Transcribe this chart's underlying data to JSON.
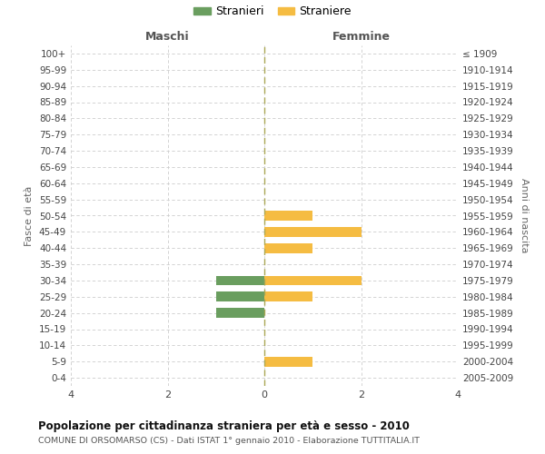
{
  "age_groups": [
    "100+",
    "95-99",
    "90-94",
    "85-89",
    "80-84",
    "75-79",
    "70-74",
    "65-69",
    "60-64",
    "55-59",
    "50-54",
    "45-49",
    "40-44",
    "35-39",
    "30-34",
    "25-29",
    "20-24",
    "15-19",
    "10-14",
    "5-9",
    "0-4"
  ],
  "birth_years": [
    "≤ 1909",
    "1910-1914",
    "1915-1919",
    "1920-1924",
    "1925-1929",
    "1930-1934",
    "1935-1939",
    "1940-1944",
    "1945-1949",
    "1950-1954",
    "1955-1959",
    "1960-1964",
    "1965-1969",
    "1970-1974",
    "1975-1979",
    "1980-1984",
    "1985-1989",
    "1990-1994",
    "1995-1999",
    "2000-2004",
    "2005-2009"
  ],
  "males": [
    0,
    0,
    0,
    0,
    0,
    0,
    0,
    0,
    0,
    0,
    0,
    0,
    0,
    0,
    1,
    1,
    1,
    0,
    0,
    0,
    0
  ],
  "females": [
    0,
    0,
    0,
    0,
    0,
    0,
    0,
    0,
    0,
    0,
    1,
    2,
    1,
    0,
    2,
    1,
    0,
    0,
    0,
    1,
    0
  ],
  "male_color": "#6a9e5f",
  "female_color": "#f5bc42",
  "title": "Popolazione per cittadinanza straniera per età e sesso - 2010",
  "subtitle": "COMUNE DI ORSOMARSO (CS) - Dati ISTAT 1° gennaio 2010 - Elaborazione TUTTITALIA.IT",
  "xlabel_left": "Maschi",
  "xlabel_right": "Femmine",
  "ylabel_left": "Fasce di età",
  "ylabel_right": "Anni di nascita",
  "xlim": 4,
  "legend_stranieri": "Stranieri",
  "legend_straniere": "Straniere",
  "background_color": "#ffffff",
  "grid_color": "#cccccc"
}
